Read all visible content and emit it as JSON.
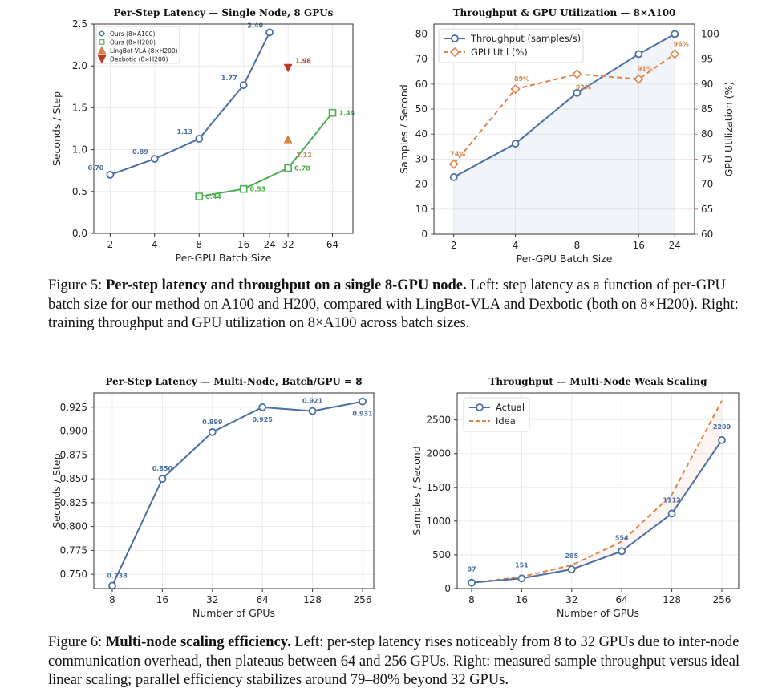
{
  "figure5": {
    "caption": {
      "number": "Figure 5:",
      "title": "Per-step latency and throughput on a single 8-GPU node.",
      "body": " Left: step latency as a function of per-GPU batch size for our method on A100 and H200, compared with LingBot-VLA and Dexbotic (both on 8×H200). Right: training throughput and GPU utilization on 8×A100 across batch sizes."
    }
  },
  "figure6": {
    "caption": {
      "number": "Figure 6:",
      "title": "Multi-node scaling efficiency.",
      "body": " Left: per-step latency rises noticeably from 8 to 32 GPUs due to inter-node communication overhead, then plateaus between 64 and 256 GPUs. Right: measured sample throughput versus ideal linear scaling; parallel efficiency stabilizes around 79–80% beyond 32 GPUs."
    }
  },
  "chart_data": [
    {
      "id": "fig5-left",
      "type": "line",
      "title": "Per-Step Latency — Single Node, 8 GPUs",
      "xlabel": "Per-GPU Batch Size",
      "ylabel": "Seconds / Step",
      "ylim": [
        0,
        2.5
      ],
      "x_scale": "log",
      "x_ticks": [
        2,
        4,
        8,
        16,
        24,
        32,
        64
      ],
      "y_ticks": [
        "0.0",
        "0.5",
        "1.0",
        "1.5",
        "2.0",
        "2.5"
      ],
      "grid": true,
      "legend_position": "top-left",
      "series": [
        {
          "name": "Ours (8×A100)",
          "color": "#4a6fa5",
          "marker": "circle",
          "x": [
            2,
            4,
            8,
            16,
            24
          ],
          "values": [
            0.7,
            0.89,
            1.13,
            1.77,
            2.4
          ],
          "labels": [
            "0.70",
            "0.89",
            "1.13",
            "1.77",
            "2.40"
          ]
        },
        {
          "name": "Ours (8×H200)",
          "color": "#4caf50",
          "marker": "square",
          "x": [
            8,
            16,
            32,
            64
          ],
          "values": [
            0.44,
            0.53,
            0.78,
            1.44
          ],
          "labels": [
            "0.44",
            "0.53",
            "0.78",
            "1.44"
          ]
        },
        {
          "name": "LingBot-VLA (8×H200)",
          "color": "#d2824b",
          "marker": "triangle-up",
          "x": [
            32
          ],
          "values": [
            1.12
          ],
          "labels": [
            "1.12"
          ]
        },
        {
          "name": "Dexbotic (8×H200)",
          "color": "#c0392b",
          "marker": "triangle-down",
          "x": [
            32
          ],
          "values": [
            1.98
          ],
          "labels": [
            "1.98"
          ]
        }
      ]
    },
    {
      "id": "fig5-right",
      "type": "line",
      "title": "Throughput & GPU Utilization — 8×A100",
      "xlabel": "Per-GPU Batch Size",
      "ylabel": "Samples / Second",
      "ylabel_right": "GPU Utilization (%)",
      "ylim": [
        0,
        84
      ],
      "ylim_right": [
        60,
        102
      ],
      "x_scale": "log",
      "x_ticks": [
        2,
        4,
        8,
        16,
        24
      ],
      "y_ticks": [
        "0",
        "10",
        "20",
        "30",
        "40",
        "50",
        "60",
        "70",
        "80"
      ],
      "y_ticks_right": [
        "60",
        "65",
        "70",
        "75",
        "80",
        "85",
        "90",
        "95",
        "100"
      ],
      "grid": true,
      "legend_position": "top-left",
      "series": [
        {
          "name": "Throughput (samples/s)",
          "color": "#4a6fa5",
          "marker": "circle",
          "axis": "left",
          "x": [
            2,
            4,
            8,
            16,
            24
          ],
          "values": [
            22.8,
            36.2,
            56.5,
            72.0,
            80.0
          ]
        },
        {
          "name": "GPU Util (%)",
          "color": "#e0834a",
          "marker": "diamond",
          "axis": "right",
          "dashed": true,
          "x": [
            2,
            4,
            8,
            16,
            24
          ],
          "values": [
            74,
            89,
            92,
            91,
            96
          ],
          "labels": [
            "74%",
            "89%",
            "92%",
            "91%",
            "96%"
          ]
        }
      ]
    },
    {
      "id": "fig6-left",
      "type": "line",
      "title": "Per-Step Latency — Multi-Node, Batch/GPU = 8",
      "xlabel": "Number of GPUs",
      "ylabel": "Seconds / Step",
      "ylim": [
        0.735,
        0.94
      ],
      "x_ticks": [
        "8",
        "16",
        "32",
        "64",
        "128",
        "256"
      ],
      "y_ticks": [
        "0.750",
        "0.775",
        "0.800",
        "0.825",
        "0.850",
        "0.875",
        "0.900",
        "0.925"
      ],
      "grid": true,
      "series": [
        {
          "name": "",
          "color": "#4a6fa5",
          "marker": "circle",
          "values": [
            0.738,
            0.85,
            0.899,
            0.925,
            0.921,
            0.931
          ],
          "labels": [
            "0.738",
            "0.850",
            "0.899",
            "0.925",
            "0.921",
            "0.931"
          ]
        }
      ]
    },
    {
      "id": "fig6-right",
      "type": "line",
      "title": "Throughput — Multi-Node Weak Scaling",
      "xlabel": "Number of GPUs",
      "ylabel": "Samples / Second",
      "ylim": [
        0,
        2900
      ],
      "x_ticks": [
        "8",
        "16",
        "32",
        "64",
        "128",
        "256"
      ],
      "y_ticks": [
        "0",
        "500",
        "1000",
        "1500",
        "2000",
        "2500"
      ],
      "grid": true,
      "legend_position": "top-left",
      "series": [
        {
          "name": "Actual",
          "color": "#4a6fa5",
          "marker": "circle",
          "values": [
            87,
            151,
            285,
            554,
            1112,
            2200
          ],
          "labels": [
            "87",
            "151",
            "285",
            "554",
            "1112",
            "2200"
          ]
        },
        {
          "name": "Ideal",
          "color": "#e0834a",
          "dashed": true,
          "values": [
            87,
            174,
            348,
            696,
            1392,
            2784
          ]
        }
      ]
    }
  ]
}
